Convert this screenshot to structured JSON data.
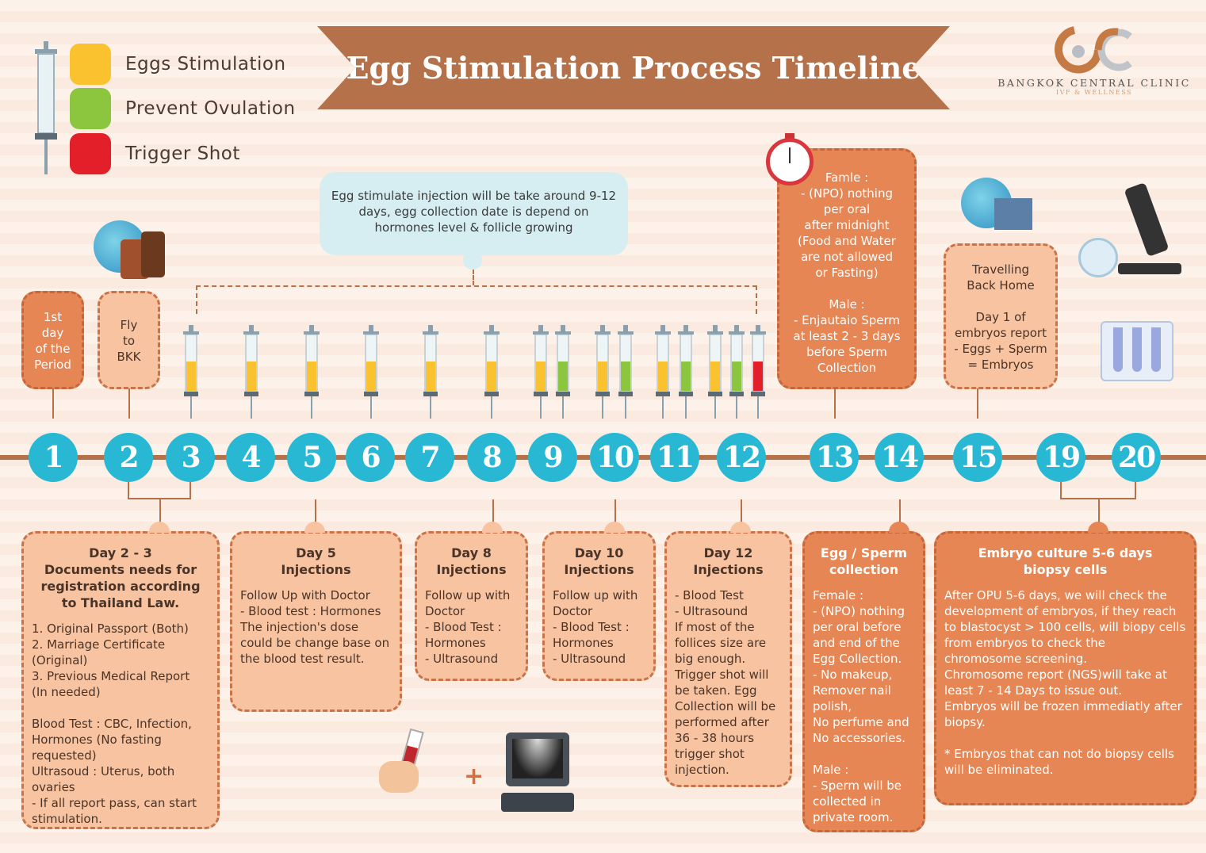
{
  "title": "Egg Stimulation Process Timeline",
  "logo": {
    "name": "BANGKOK CENTRAL CLINIC",
    "tagline": "IVF & WELLNESS"
  },
  "legend": [
    {
      "label": "Eggs Stimulation",
      "color": "#f9c22e"
    },
    {
      "label": "Prevent Ovulation",
      "color": "#8cc63f"
    },
    {
      "label": "Trigger Shot",
      "color": "#e3202a"
    }
  ],
  "colors": {
    "accent": "#b5714a",
    "day_circle": "#29b8d4",
    "dark_box": "#e58654",
    "light_box": "#f8c3a0"
  },
  "days": [
    "1",
    "2",
    "3",
    "4",
    "5",
    "6",
    "7",
    "8",
    "9",
    "10",
    "11",
    "12",
    "13",
    "14",
    "15",
    "19",
    "20"
  ],
  "injections": [
    "stimulation",
    "stimulation",
    "stimulation",
    "stimulation",
    "stimulation",
    "stimulation",
    "stimulation",
    "prevent",
    "stimulation",
    "prevent",
    "stimulation",
    "prevent",
    "stimulation",
    "prevent",
    "trigger"
  ],
  "bubble": "Egg stimulate injection will be take around 9-12 days, egg collection date is depend on hormones level & follicle growing",
  "top_boxes": {
    "day1": "1st\nday\nof the\nPeriod",
    "fly": "Fly\nto\nBKK",
    "day13": "Famle :\n- (NPO) nothing\nper oral\nafter midnight\n(Food and Water\nare not allowed\nor Fasting)\n\nMale :\n- Enjautaio  Sperm\nat least 2 - 3 days\nbefore Sperm\nCollection",
    "day15": "Travelling\nBack Home\n\nDay 1 of\nembryos report\n- Eggs + Sperm\n= Embryos"
  },
  "bottom_boxes": [
    {
      "title": "Day 2  -  3\nDocuments needs for registration according to Thailand Law.",
      "body": "1. Original Passport (Both)\n2. Marriage Certificate\n    (Original)\n3. Previous Medical Report\n    (In needed)\n\nBlood Test : CBC, Infection, Hormones (No fasting requested)\nUltrasoud : Uterus, both ovaries\n- If all report pass, can start stimulation."
    },
    {
      "title": "Day 5\nInjections",
      "body": "Follow Up with Doctor\n- Blood test : Hormones\nThe injection's dose could be change base on the blood test result."
    },
    {
      "title": "Day 8\nInjections",
      "body": "Follow up with Doctor\n- Blood Test :\nHormones\n- Ultrasound"
    },
    {
      "title": "Day 10\nInjections",
      "body": "Follow up with Doctor\n- Blood Test :\nHormones\n- Ultrasound"
    },
    {
      "title": "Day 12\nInjections",
      "body": "- Blood Test\n- Ultrasound\nIf most of the follices size are big enough. Trigger shot will be taken. Egg Collection will be performed after 36 - 38 hours trigger shot injection."
    },
    {
      "title": "Egg / Sperm\ncollection",
      "body": "Female :\n- (NPO) nothing per oral before and end of the Egg Collection.\n- No makeup, Remover nail polish,\nNo perfume and No accessories.\n\nMale :\n- Sperm will be collected in private room."
    },
    {
      "title": "Embryo culture 5-6 days\nbiopsy cells",
      "body": "After OPU 5-6 days, we will check the development of embryos, if they reach to blastocyst > 100 cells, will biopy cells from embryos to check the chromosome screening.\nChromosome report (NGS)will take at least 7 - 14 Days to issue out.\nEmbryos will be frozen immediatly after biopsy.\n\n* Embryos that can not do biopsy cells will be eliminated."
    }
  ],
  "plus": "+"
}
